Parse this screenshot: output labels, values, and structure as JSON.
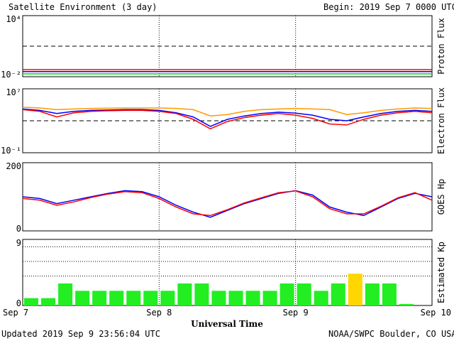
{
  "header": {
    "title": "Satellite Environment (3 day)",
    "begin": "Begin:  2019 Sep 7 0000 UTC"
  },
  "footer": {
    "updated": "Updated 2019 Sep  9 23:56:04 UTC",
    "credit": "NOAA/SWPC Boulder, CO USA"
  },
  "chart_data": {
    "type": "line",
    "xlabel": "Universal Time",
    "x_ticks": [
      "Sep 7",
      "Sep 8",
      "Sep 9",
      "Sep 10"
    ],
    "x_range_hours": [
      0,
      72
    ],
    "panels": [
      {
        "id": "proton",
        "ylabel": "Proton Flux",
        "scale": "log",
        "ylim": [
          0.01,
          10000
        ],
        "ytick_labels": {
          "top": "10⁴",
          "bottom": "10⁻²"
        },
        "threshold": 10,
        "series": [
          {
            "color": "#ff0000",
            "values": [
              0.05,
              0.05,
              0.05,
              0.05,
              0.05,
              0.05,
              0.05,
              0.05,
              0.05,
              0.05,
              0.05,
              0.05,
              0.05,
              0.05,
              0.05,
              0.05,
              0.05,
              0.05,
              0.05,
              0.05,
              0.05,
              0.05,
              0.05,
              0.05,
              0.05
            ]
          },
          {
            "color": "#0000ff",
            "values": [
              0.032,
              0.032,
              0.032,
              0.032,
              0.032,
              0.032,
              0.032,
              0.032,
              0.032,
              0.032,
              0.032,
              0.032,
              0.032,
              0.032,
              0.032,
              0.032,
              0.032,
              0.032,
              0.032,
              0.032,
              0.032,
              0.032,
              0.032,
              0.032,
              0.032
            ]
          },
          {
            "color": "#00dd00",
            "values": [
              0.019,
              0.019,
              0.019,
              0.019,
              0.019,
              0.019,
              0.019,
              0.019,
              0.019,
              0.019,
              0.019,
              0.019,
              0.019,
              0.019,
              0.019,
              0.019,
              0.019,
              0.019,
              0.019,
              0.019,
              0.019,
              0.019,
              0.019,
              0.019,
              0.019
            ]
          }
        ]
      },
      {
        "id": "electron",
        "ylabel": "Electron Flux",
        "scale": "log",
        "ylim": [
          0.1,
          10000000
        ],
        "ytick_labels": {
          "top": "10⁷",
          "bottom": "10⁻¹"
        },
        "threshold": 1000,
        "series": [
          {
            "color": "#ff9900",
            "values": [
              50000,
              40000,
              25000,
              30000,
              35000,
              38000,
              40000,
              40000,
              40000,
              35000,
              25000,
              4000,
              6000,
              15000,
              25000,
              30000,
              35000,
              30000,
              25000,
              6000,
              10000,
              20000,
              30000,
              40000,
              35000
            ]
          },
          {
            "color": "#0000ff",
            "values": [
              30000,
              20000,
              8000,
              15000,
              20000,
              22000,
              25000,
              25000,
              20000,
              10000,
              3000,
              200,
              1500,
              4000,
              8000,
              12000,
              9000,
              5000,
              1500,
              1000,
              3000,
              8000,
              15000,
              20000,
              15000
            ]
          },
          {
            "color": "#ff0000",
            "values": [
              25000,
              15000,
              3000,
              10000,
              15000,
              18000,
              20000,
              20000,
              15000,
              8000,
              1500,
              100,
              800,
              2500,
              5000,
              8000,
              5000,
              2000,
              400,
              300,
              1500,
              5000,
              10000,
              15000,
              10000
            ]
          }
        ]
      },
      {
        "id": "goes",
        "ylabel": "GOES Hp",
        "scale": "linear",
        "ylim": [
          0,
          200
        ],
        "ytick_labels": {
          "top": "200",
          "bottom": "0"
        },
        "series": [
          {
            "color": "#0000ff",
            "values": [
              100,
              95,
              80,
              90,
              100,
              110,
              118,
              115,
              100,
              75,
              55,
              40,
              60,
              80,
              95,
              110,
              118,
              105,
              70,
              55,
              45,
              70,
              95,
              110,
              100
            ]
          },
          {
            "color": "#ff0000",
            "values": [
              95,
              90,
              75,
              85,
              98,
              108,
              115,
              112,
              95,
              70,
              50,
              45,
              62,
              82,
              97,
              112,
              117,
              100,
              65,
              50,
              50,
              72,
              97,
              112,
              90
            ]
          }
        ]
      },
      {
        "id": "kp",
        "ylabel": "Estimated Kp",
        "scale": "linear",
        "ylim": [
          0,
          9
        ],
        "ytick_labels": {
          "top": "9",
          "bottom": "0"
        },
        "bars": [
          1,
          1,
          3,
          2,
          2,
          2,
          2,
          2,
          2,
          3,
          3,
          2,
          2,
          2,
          2,
          3,
          3,
          2,
          3,
          4.33,
          3,
          3,
          0.2
        ],
        "highlight_index": 19,
        "bar_color": "#22ee22",
        "highlight_color": "#ffd700"
      }
    ]
  }
}
